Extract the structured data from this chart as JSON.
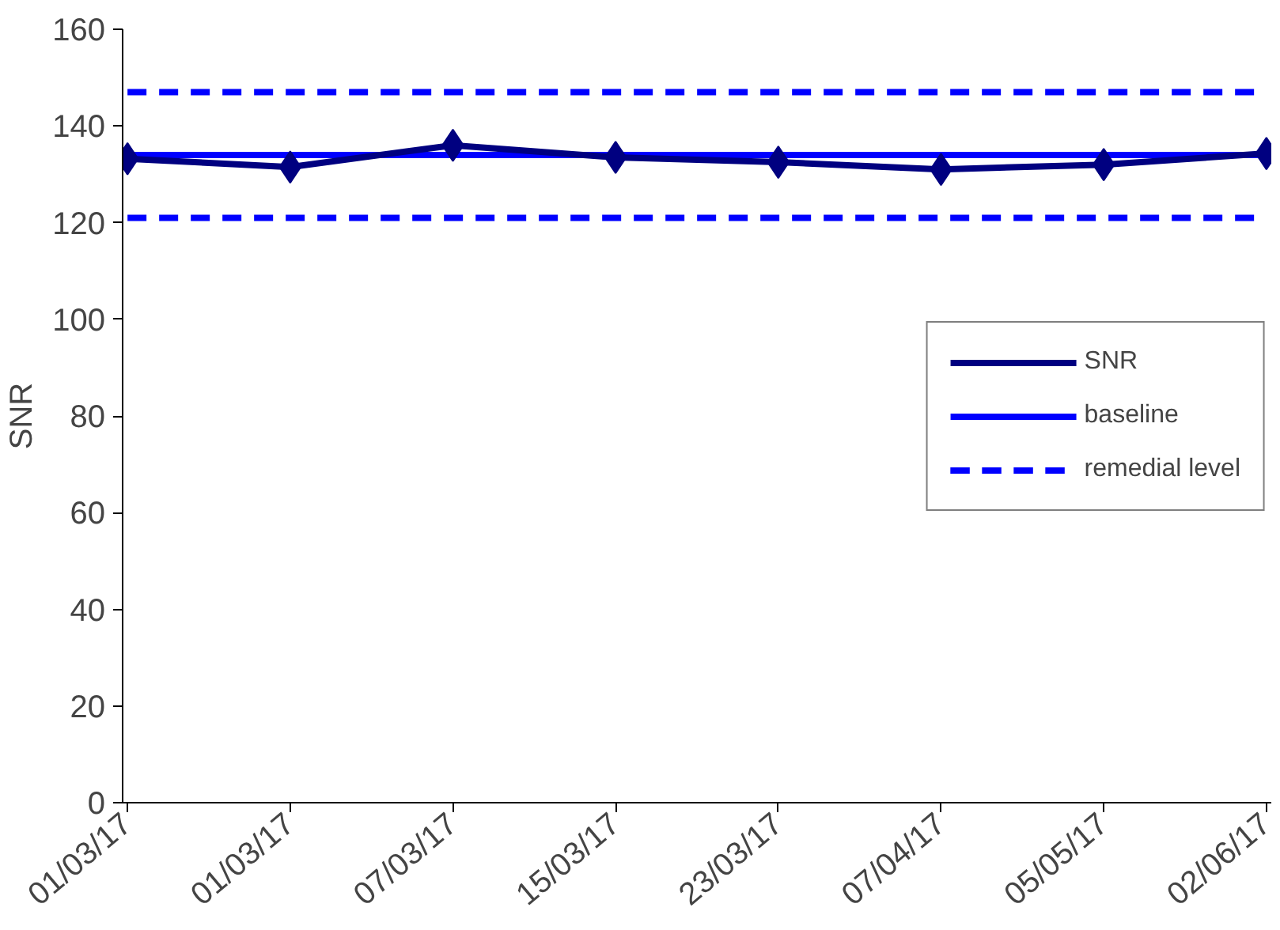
{
  "chart_data": {
    "type": "line",
    "ylabel": "SNR",
    "categories": [
      "01/03/17",
      "01/03/17",
      "07/03/17",
      "15/03/17",
      "23/03/17",
      "07/04/17",
      "05/05/17",
      "02/06/17"
    ],
    "series": [
      {
        "name": "SNR",
        "color": "#000080",
        "values": [
          133.2,
          131.5,
          136,
          133.5,
          132.5,
          131,
          132,
          134.3
        ]
      }
    ],
    "ref_lines": [
      {
        "axis": "y",
        "value": 134,
        "label": "baseline",
        "color": "#0000ff",
        "line_style": "solid"
      },
      {
        "axis": "y",
        "value": 147,
        "label": "remedial level",
        "color": "#0000ff",
        "line_style": "dashed"
      },
      {
        "axis": "y",
        "value": 121,
        "color": "#0000ff",
        "line_style": "dashed"
      }
    ],
    "ylim": [
      0,
      160
    ],
    "yticks": [
      0,
      20,
      40,
      60,
      80,
      100,
      120,
      140,
      160
    ],
    "marker": "diamond",
    "line_style": "solid",
    "grid": false,
    "legend": "right"
  }
}
